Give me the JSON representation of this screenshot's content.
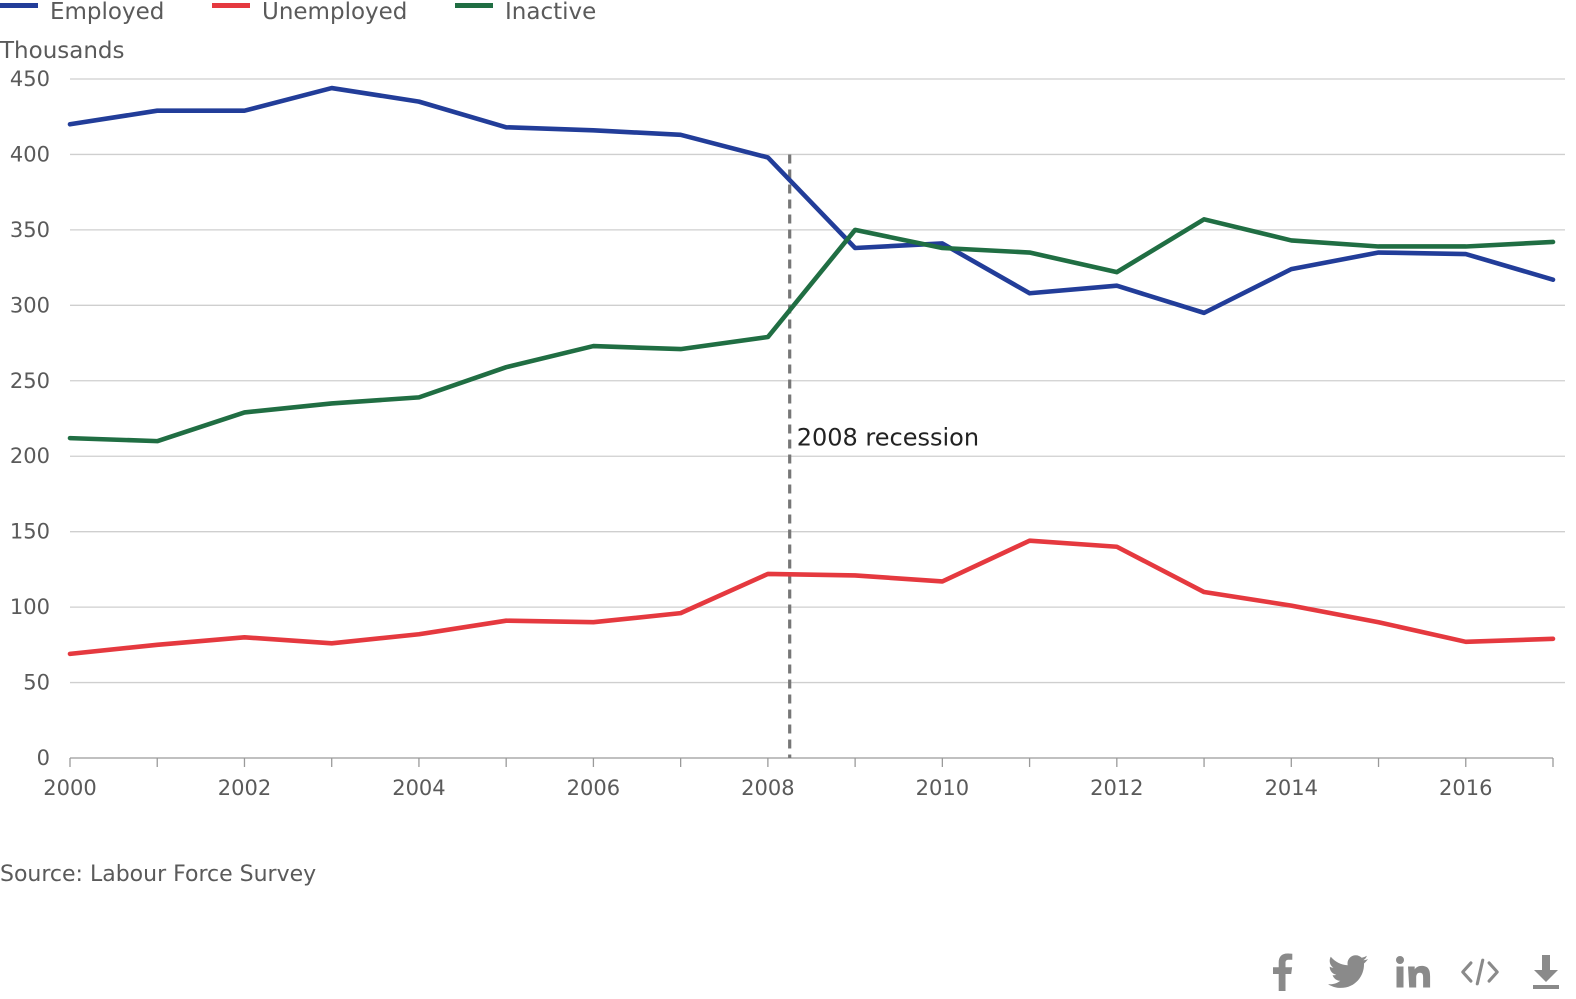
{
  "chart_data": {
    "type": "line",
    "unit_label": "Thousands",
    "x": [
      2000,
      2001,
      2002,
      2003,
      2004,
      2005,
      2006,
      2007,
      2008,
      2009,
      2010,
      2011,
      2012,
      2013,
      2014,
      2015,
      2016,
      2017
    ],
    "x_tick_labels": [
      "2000",
      "2002",
      "2004",
      "2006",
      "2008",
      "2010",
      "2012",
      "2014",
      "2016"
    ],
    "y_tick_labels": [
      "0",
      "50",
      "100",
      "150",
      "200",
      "250",
      "300",
      "350",
      "400",
      "450"
    ],
    "xlim": [
      2000,
      2017
    ],
    "ylim": [
      0,
      450
    ],
    "grid": true,
    "legend_position": "top-left",
    "series": [
      {
        "name": "Employed",
        "color": "#223d99",
        "values": [
          420,
          429,
          429,
          444,
          435,
          418,
          416,
          413,
          398,
          338,
          341,
          308,
          313,
          295,
          324,
          335,
          334,
          317
        ]
      },
      {
        "name": "Unemployed",
        "color": "#e5393f",
        "values": [
          69,
          75,
          80,
          76,
          82,
          91,
          90,
          96,
          122,
          121,
          117,
          144,
          140,
          110,
          101,
          90,
          77,
          79
        ]
      },
      {
        "name": "Inactive",
        "color": "#206e43",
        "values": [
          212,
          210,
          229,
          235,
          239,
          259,
          273,
          271,
          279,
          350,
          338,
          335,
          322,
          357,
          343,
          339,
          339,
          342
        ]
      }
    ],
    "annotations": [
      {
        "text": "2008 recession",
        "x": 2008.25,
        "style": "dashed-vertical-line"
      }
    ]
  },
  "source": "Source: Labour Force Survey",
  "share_icons": [
    "facebook-icon",
    "twitter-icon",
    "linkedin-icon",
    "embed-icon",
    "download-icon"
  ]
}
